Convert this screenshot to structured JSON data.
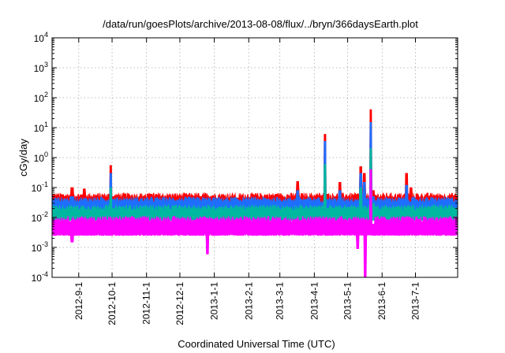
{
  "chart_data": {
    "type": "line",
    "title": "/data/run/goesPlots/archive/2013-08-08/flux/../bryn/366daysEarth.plot",
    "xlabel": "Coordinated Universal Time (UTC)",
    "ylabel": "cGy/day",
    "yscale": "log",
    "ylim": [
      0.0001,
      10000
    ],
    "xlim": [
      "2012-08-08",
      "2013-08-08"
    ],
    "grid": true,
    "y_ticks": [
      {
        "base": "10",
        "exp": "-4",
        "value": 0.0001
      },
      {
        "base": "10",
        "exp": "-3",
        "value": 0.001
      },
      {
        "base": "10",
        "exp": "-2",
        "value": 0.01
      },
      {
        "base": "10",
        "exp": "-1",
        "value": 0.1
      },
      {
        "base": "10",
        "exp": "0",
        "value": 1
      },
      {
        "base": "10",
        "exp": "1",
        "value": 10
      },
      {
        "base": "10",
        "exp": "2",
        "value": 100
      },
      {
        "base": "10",
        "exp": "3",
        "value": 1000
      },
      {
        "base": "10",
        "exp": "4",
        "value": 10000
      }
    ],
    "x_ticks": [
      {
        "label": "2012-9-1",
        "date": "2012-09-01"
      },
      {
        "label": "2012-10-1",
        "date": "2012-10-01"
      },
      {
        "label": "2012-11-1",
        "date": "2012-11-01"
      },
      {
        "label": "2012-12-1",
        "date": "2012-12-01"
      },
      {
        "label": "2013-1-1",
        "date": "2013-01-01"
      },
      {
        "label": "2013-2-1",
        "date": "2013-02-01"
      },
      {
        "label": "2013-3-1",
        "date": "2013-03-01"
      },
      {
        "label": "2013-4-1",
        "date": "2013-04-01"
      },
      {
        "label": "2013-5-1",
        "date": "2013-05-01"
      },
      {
        "label": "2013-6-1",
        "date": "2013-06-01"
      },
      {
        "label": "2013-7-1",
        "date": "2013-07-01"
      }
    ],
    "series": [
      {
        "color": "#ff0000",
        "baseline": 0.03,
        "min": 0.022,
        "points": [
          [
            "2012-08-08",
            0.03
          ],
          [
            "2012-08-26",
            0.1
          ],
          [
            "2012-09-06",
            0.09
          ],
          [
            "2012-09-30",
            0.55
          ],
          [
            "2012-10-02",
            0.05
          ],
          [
            "2012-11-05",
            0.06
          ],
          [
            "2012-12-20",
            0.05
          ],
          [
            "2013-01-22",
            0.045
          ],
          [
            "2013-02-26",
            0.06
          ],
          [
            "2013-03-17",
            0.16
          ],
          [
            "2013-04-11",
            6
          ],
          [
            "2013-04-13",
            0.06
          ],
          [
            "2013-04-24",
            0.15
          ],
          [
            "2013-05-13",
            0.5
          ],
          [
            "2013-05-16",
            0.3
          ],
          [
            "2013-05-22",
            40
          ],
          [
            "2013-05-24",
            0.08
          ],
          [
            "2013-06-23",
            0.3
          ],
          [
            "2013-06-27",
            0.1
          ],
          [
            "2013-08-08",
            0.03
          ]
        ]
      },
      {
        "color": "#1e6eff",
        "baseline": 0.022,
        "min": 0.014,
        "points": [
          [
            "2012-08-08",
            0.022
          ],
          [
            "2012-08-26",
            0.05
          ],
          [
            "2012-09-30",
            0.3
          ],
          [
            "2012-10-02",
            0.04
          ],
          [
            "2013-03-17",
            0.08
          ],
          [
            "2013-04-11",
            3.5
          ],
          [
            "2013-04-13",
            0.04
          ],
          [
            "2013-04-24",
            0.08
          ],
          [
            "2013-05-13",
            0.3
          ],
          [
            "2013-05-16",
            0.15
          ],
          [
            "2013-05-22",
            15
          ],
          [
            "2013-05-24",
            0.05
          ],
          [
            "2013-06-23",
            0.12
          ],
          [
            "2013-08-08",
            0.022
          ]
        ]
      },
      {
        "color": "#00b8a0",
        "baseline": 0.012,
        "min": 0.008,
        "points": [
          [
            "2012-08-08",
            0.012
          ],
          [
            "2012-09-30",
            0.1
          ],
          [
            "2012-10-02",
            0.02
          ],
          [
            "2013-04-11",
            0.6
          ],
          [
            "2013-04-13",
            0.02
          ],
          [
            "2013-05-13",
            0.1
          ],
          [
            "2013-05-22",
            2
          ],
          [
            "2013-05-24",
            0.03
          ],
          [
            "2013-08-08",
            0.012
          ]
        ]
      },
      {
        "color": "#ff00ff",
        "baseline": 0.005,
        "min": 0.0025,
        "points": [
          [
            "2012-08-08",
            0.005
          ],
          [
            "2012-08-26",
            0.0015
          ],
          [
            "2012-12-26",
            0.0006
          ],
          [
            "2013-04-13",
            0.0035
          ],
          [
            "2013-05-10",
            0.0009
          ],
          [
            "2013-05-17",
            0.0001
          ],
          [
            "2013-05-22",
            0.4
          ],
          [
            "2013-05-24",
            0.006
          ],
          [
            "2013-08-08",
            0.005
          ]
        ]
      }
    ]
  }
}
